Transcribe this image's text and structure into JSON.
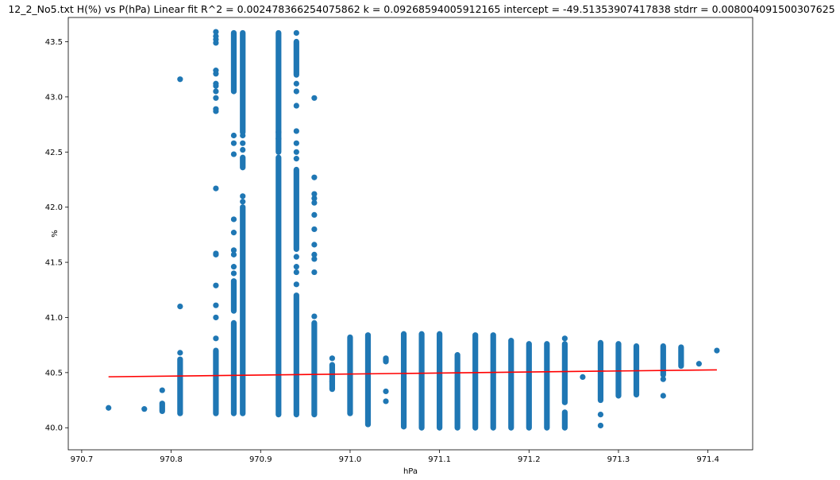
{
  "chart_data": {
    "type": "scatter",
    "title": "12_2_No5.txt    H(%) vs P(hPa)    Linear fit    R^2 = 0.002478366254075862  k = 0.09268594005912165  intercept = -49.51353907417838  stdrr = 0.008004091500307625",
    "xlabel": "hPa",
    "ylabel": "%",
    "xlim": [
      970.685,
      971.45
    ],
    "ylim": [
      39.8,
      43.72
    ],
    "xticks": [
      970.7,
      970.8,
      970.9,
      971.0,
      971.1,
      971.2,
      971.3,
      971.4
    ],
    "xtick_labels": [
      "970.7",
      "970.8",
      "970.9",
      "971.0",
      "971.1",
      "971.2",
      "971.3",
      "971.4"
    ],
    "yticks": [
      40.0,
      40.5,
      41.0,
      41.5,
      42.0,
      42.5,
      43.0,
      43.5
    ],
    "ytick_labels": [
      "40.0",
      "40.5",
      "41.0",
      "41.5",
      "42.0",
      "42.5",
      "43.0",
      "43.5"
    ],
    "grid": false,
    "scatter_color": "#1f77b4",
    "fit_color": "#ff0000",
    "columns": [
      {
        "x": 970.73,
        "dense": [],
        "points": [
          40.18
        ]
      },
      {
        "x": 970.77,
        "dense": [],
        "points": [
          40.17
        ]
      },
      {
        "x": 970.79,
        "dense": [
          [
            40.15,
            40.22
          ]
        ],
        "points": [
          40.34
        ]
      },
      {
        "x": 970.81,
        "dense": [
          [
            40.13,
            40.62
          ]
        ],
        "points": [
          40.68,
          41.1,
          43.16
        ]
      },
      {
        "x": 970.85,
        "dense": [
          [
            40.13,
            40.7
          ]
        ],
        "points": [
          40.81,
          41.0,
          41.11,
          41.29,
          41.57,
          41.58,
          42.17,
          42.87,
          42.89,
          42.99,
          43.05,
          43.1,
          43.12,
          43.21,
          43.24,
          43.49,
          43.52,
          43.55,
          43.59
        ]
      },
      {
        "x": 970.87,
        "dense": [
          [
            40.13,
            40.95
          ],
          [
            41.06,
            41.33
          ],
          [
            43.05,
            43.58
          ]
        ],
        "points": [
          41.4,
          41.46,
          41.57,
          41.61,
          41.77,
          41.89,
          42.48,
          42.58,
          42.65
        ]
      },
      {
        "x": 970.88,
        "dense": [
          [
            40.13,
            42.0
          ],
          [
            42.36,
            42.45
          ],
          [
            42.68,
            43.58
          ]
        ],
        "points": [
          42.05,
          42.1,
          42.52,
          42.58,
          42.65
        ]
      },
      {
        "x": 970.92,
        "dense": [
          [
            40.12,
            42.45
          ],
          [
            42.5,
            43.58
          ]
        ],
        "points": [
          42.62,
          42.68
        ]
      },
      {
        "x": 970.94,
        "dense": [
          [
            40.12,
            41.2
          ],
          [
            41.62,
            42.34
          ],
          [
            43.2,
            43.5
          ]
        ],
        "points": [
          41.3,
          41.41,
          41.46,
          41.55,
          42.44,
          42.5,
          42.58,
          42.69,
          42.92,
          43.05,
          43.12,
          43.58
        ]
      },
      {
        "x": 970.96,
        "dense": [
          [
            40.12,
            40.95
          ]
        ],
        "points": [
          41.01,
          41.41,
          41.53,
          41.57,
          41.66,
          41.8,
          41.93,
          42.04,
          42.08,
          42.12,
          42.27,
          42.99
        ]
      },
      {
        "x": 970.98,
        "dense": [
          [
            40.35,
            40.57
          ]
        ],
        "points": [
          40.42,
          40.63
        ]
      },
      {
        "x": 971.0,
        "dense": [
          [
            40.13,
            40.82
          ]
        ],
        "points": []
      },
      {
        "x": 971.02,
        "dense": [
          [
            40.03,
            40.84
          ]
        ],
        "points": []
      },
      {
        "x": 971.04,
        "dense": [
          [
            40.6,
            40.63
          ]
        ],
        "points": [
          40.24,
          40.33
        ]
      },
      {
        "x": 971.06,
        "dense": [
          [
            40.01,
            40.85
          ]
        ],
        "points": []
      },
      {
        "x": 971.08,
        "dense": [
          [
            40.0,
            40.85
          ]
        ],
        "points": []
      },
      {
        "x": 971.1,
        "dense": [
          [
            40.0,
            40.85
          ]
        ],
        "points": []
      },
      {
        "x": 971.12,
        "dense": [
          [
            40.0,
            40.66
          ]
        ],
        "points": []
      },
      {
        "x": 971.14,
        "dense": [
          [
            40.0,
            40.84
          ]
        ],
        "points": []
      },
      {
        "x": 971.16,
        "dense": [
          [
            40.0,
            40.84
          ]
        ],
        "points": []
      },
      {
        "x": 971.18,
        "dense": [
          [
            40.0,
            40.79
          ]
        ],
        "points": []
      },
      {
        "x": 971.2,
        "dense": [
          [
            40.0,
            40.76
          ]
        ],
        "points": []
      },
      {
        "x": 971.22,
        "dense": [
          [
            40.0,
            40.76
          ]
        ],
        "points": []
      },
      {
        "x": 971.24,
        "dense": [
          [
            40.0,
            40.14
          ],
          [
            40.23,
            40.76
          ]
        ],
        "points": [
          40.81
        ]
      },
      {
        "x": 971.26,
        "dense": [],
        "points": [
          40.46
        ]
      },
      {
        "x": 971.28,
        "dense": [
          [
            40.25,
            40.77
          ]
        ],
        "points": [
          40.02,
          40.12
        ]
      },
      {
        "x": 971.3,
        "dense": [
          [
            40.29,
            40.76
          ]
        ],
        "points": []
      },
      {
        "x": 971.32,
        "dense": [
          [
            40.3,
            40.74
          ]
        ],
        "points": []
      },
      {
        "x": 971.35,
        "dense": [
          [
            40.48,
            40.74
          ]
        ],
        "points": [
          40.29,
          40.44
        ]
      },
      {
        "x": 971.37,
        "dense": [
          [
            40.56,
            40.73
          ]
        ],
        "points": []
      },
      {
        "x": 971.39,
        "dense": [],
        "points": [
          40.58
        ]
      },
      {
        "x": 971.41,
        "dense": [],
        "points": [
          40.7
        ]
      }
    ],
    "fit_line": {
      "x": [
        970.73,
        971.41
      ],
      "y": [
        40.462,
        40.525
      ]
    }
  }
}
